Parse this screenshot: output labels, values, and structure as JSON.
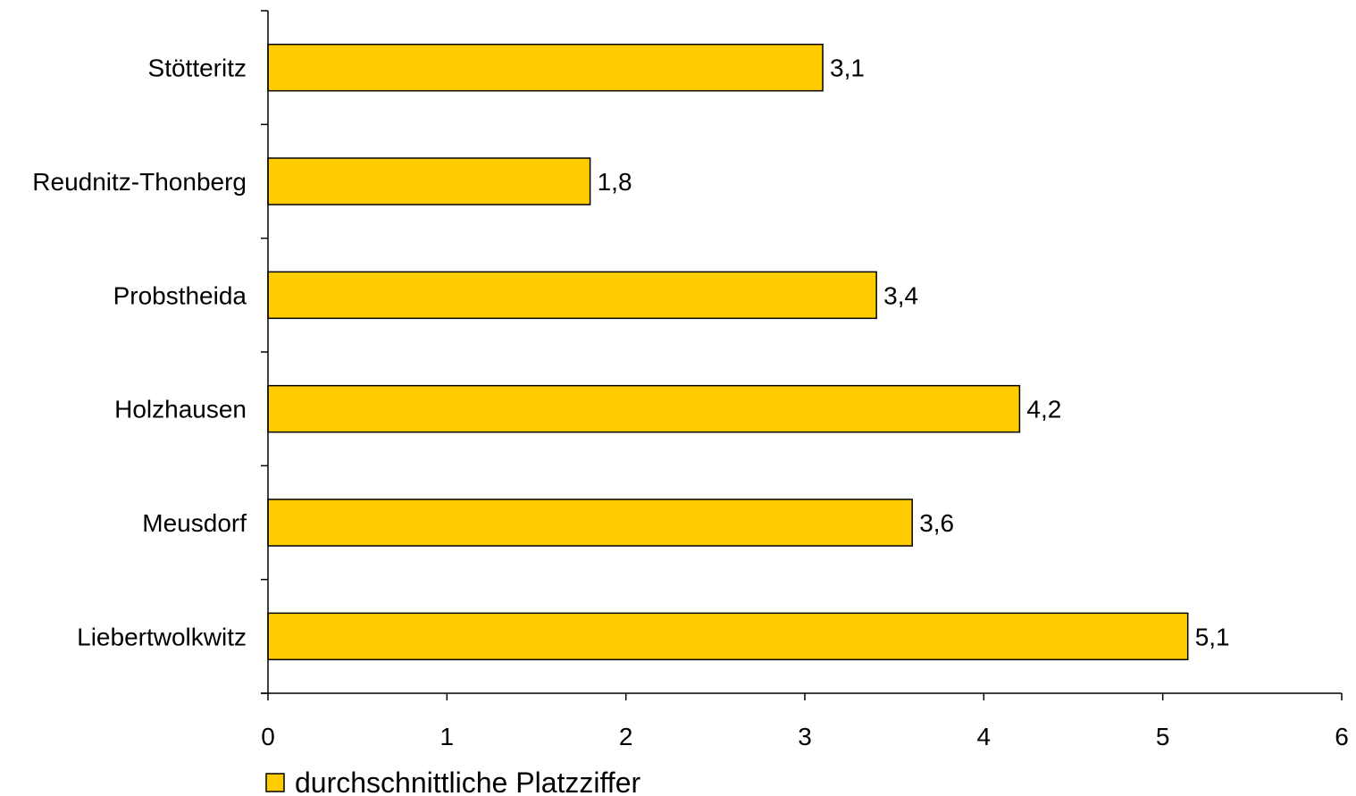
{
  "chart_data": {
    "type": "bar",
    "orientation": "horizontal",
    "categories": [
      "Stötteritz",
      "Reudnitz-Thonberg",
      "Probstheida",
      "Holzhausen",
      "Meusdorf",
      "Liebertwolkwitz"
    ],
    "series": [
      {
        "name": "durchschnittliche Platzziffer",
        "values": [
          3.1,
          1.8,
          3.4,
          4.2,
          3.6,
          5.14
        ],
        "data_labels": [
          "3,1",
          "1,8",
          "3,4",
          "4,2",
          "3,6",
          "5,1"
        ],
        "color": "#FFCC00"
      }
    ],
    "x_ticks": [
      0,
      1,
      2,
      3,
      4,
      5,
      6
    ],
    "x_tick_labels": [
      "0",
      "1",
      "2",
      "3",
      "4",
      "5",
      "6"
    ],
    "xlim": [
      0,
      6
    ],
    "title": "",
    "xlabel": "",
    "ylabel": "",
    "grid": false,
    "legend_position": "bottom-left"
  }
}
